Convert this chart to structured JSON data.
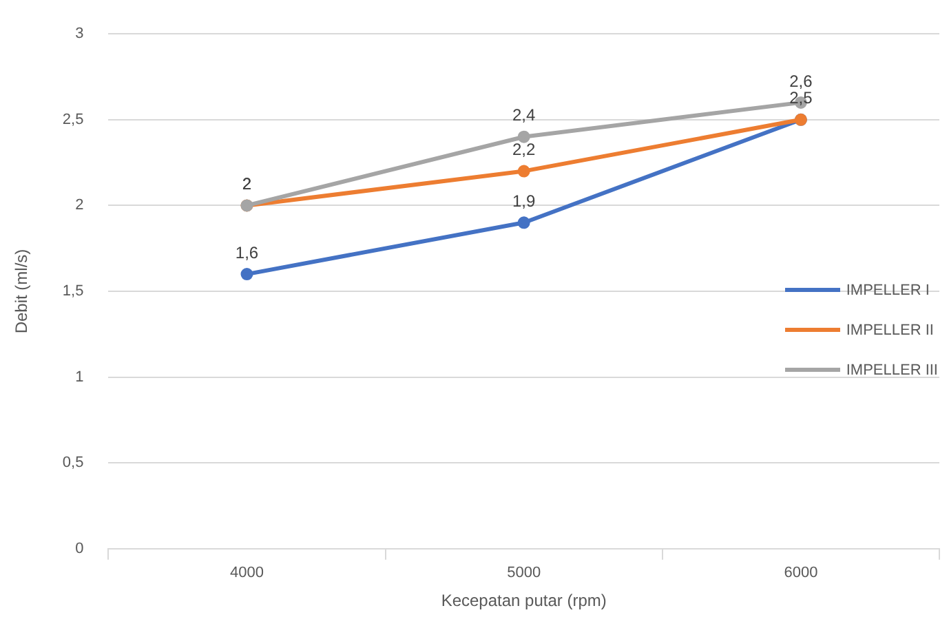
{
  "chart_data": {
    "type": "line",
    "xlabel": "Kecepatan putar (rpm)",
    "ylabel": "Debit (ml/s)",
    "categories": [
      "4000",
      "5000",
      "6000"
    ],
    "series": [
      {
        "name": "IMPELLER I",
        "color": "#4472c4",
        "values": [
          1.6,
          1.9,
          2.5
        ],
        "value_labels": [
          "1,6",
          "1,9",
          null
        ]
      },
      {
        "name": "IMPELLER II",
        "color": "#ed7d31",
        "values": [
          2,
          2.2,
          2.5
        ],
        "value_labels": [
          "2",
          "2,2",
          "2,5"
        ]
      },
      {
        "name": "IMPELLER III",
        "color": "#a5a5a5",
        "values": [
          2,
          2.4,
          2.6
        ],
        "value_labels": [
          "2",
          "2,4",
          "2,6"
        ]
      }
    ],
    "ylim": [
      0,
      3
    ],
    "yticks": [
      0,
      {
        "value": 0.5,
        "label": "0,5"
      },
      1,
      {
        "value": 1.5,
        "label": "1,5"
      },
      2,
      {
        "value": 2.5,
        "label": "2,5"
      },
      3
    ],
    "grid": "y",
    "legend": "right",
    "marker": "circle",
    "line_style": "solid"
  }
}
